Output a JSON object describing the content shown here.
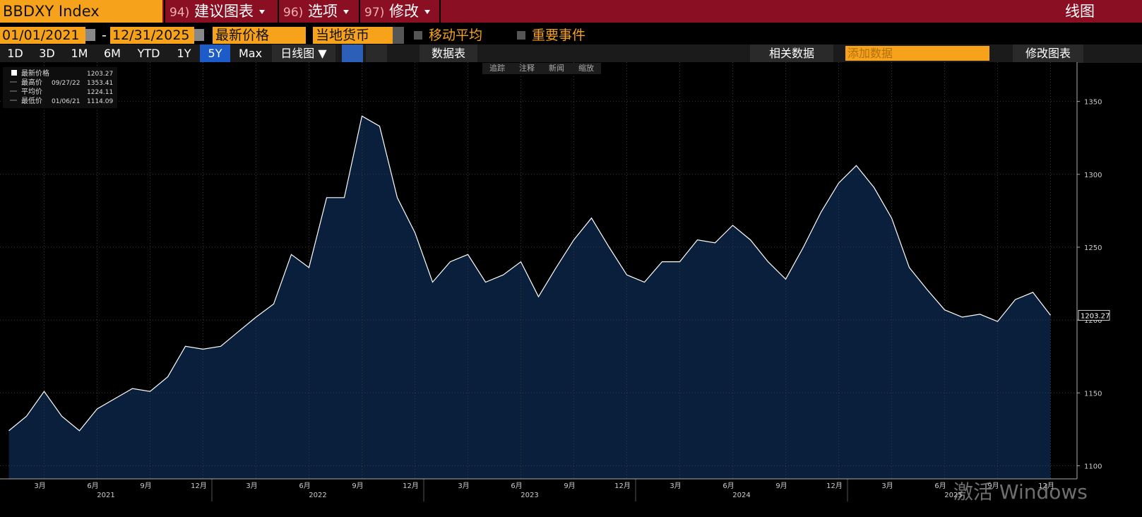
{
  "ui": {
    "ticker": "BBDXY Index",
    "menu": [
      {
        "num": "94)",
        "label": "建议图表"
      },
      {
        "num": "96)",
        "label": "选项"
      },
      {
        "num": "97)",
        "label": "修改"
      }
    ],
    "chart_kind": "线图",
    "start_date": "01/01/2021",
    "date_sep": "-",
    "end_date": "12/31/2025",
    "field": "最新价格",
    "currency": "当地货币",
    "moving_avg": "移动平均",
    "events": "重要事件",
    "periods": [
      "1D",
      "3D",
      "1M",
      "6M",
      "YTD",
      "1Y",
      "5Y",
      "Max"
    ],
    "active_period": "5Y",
    "frequency": "日线图 ▼",
    "table": "数据表",
    "related": "相关数据",
    "add_data": "添加数据",
    "edit_chart": "修改图表",
    "tools": [
      "追踪",
      "注释",
      "新闻",
      "缩放"
    ],
    "watermark": "激活 Windows"
  },
  "chart_data": {
    "type": "area",
    "color": "#ffffff",
    "fill": "#0a1f3c",
    "grid": true,
    "x": [
      "2021-01",
      "2021-02",
      "2021-03",
      "2021-04",
      "2021-05",
      "2021-06",
      "2021-07",
      "2021-08",
      "2021-09",
      "2021-10",
      "2021-11",
      "2021-12",
      "2022-01",
      "2022-02",
      "2022-03",
      "2022-04",
      "2022-05",
      "2022-06",
      "2022-07",
      "2022-08",
      "2022-09",
      "2022-10",
      "2022-11",
      "2022-12",
      "2023-01",
      "2023-02",
      "2023-03",
      "2023-04",
      "2023-05",
      "2023-06",
      "2023-07",
      "2023-08",
      "2023-09",
      "2023-10",
      "2023-11",
      "2023-12",
      "2024-01",
      "2024-02",
      "2024-03",
      "2024-04",
      "2024-05",
      "2024-06",
      "2024-07",
      "2024-08",
      "2024-09",
      "2024-10",
      "2024-11",
      "2024-12",
      "2025-01",
      "2025-02",
      "2025-03",
      "2025-04",
      "2025-05",
      "2025-06",
      "2025-07",
      "2025-08",
      "2025-09",
      "2025-10",
      "2025-11",
      "2025-12"
    ],
    "values": [
      1124,
      1134,
      1151,
      1134,
      1124,
      1139,
      1146,
      1153,
      1151,
      1161,
      1182,
      1180,
      1182,
      1192,
      1202,
      1211,
      1245,
      1236,
      1284,
      1284,
      1340,
      1333,
      1284,
      1260,
      1226,
      1240,
      1245,
      1226,
      1231,
      1240,
      1216,
      1236,
      1255,
      1270,
      1250,
      1231,
      1226,
      1240,
      1240,
      1255,
      1253,
      1265,
      1255,
      1240,
      1228,
      1250,
      1274,
      1294,
      1306,
      1291,
      1270,
      1236,
      1221,
      1207,
      1202,
      1204,
      1199,
      1214,
      1219,
      1203.27
    ],
    "ylim": [
      1091,
      1376
    ],
    "yticks": [
      1100,
      1150,
      1200,
      1250,
      1300,
      1350
    ],
    "xticks": [
      {
        "value": "2021-03",
        "label": "3月"
      },
      {
        "value": "2021-06",
        "label": "6月"
      },
      {
        "value": "2021-09",
        "label": "9月"
      },
      {
        "value": "2021-12",
        "label": "12月"
      },
      {
        "value": "2022-03",
        "label": "3月"
      },
      {
        "value": "2022-06",
        "label": "6月"
      },
      {
        "value": "2022-09",
        "label": "9月"
      },
      {
        "value": "2022-12",
        "label": "12月"
      },
      {
        "value": "2023-03",
        "label": "3月"
      },
      {
        "value": "2023-06",
        "label": "6月"
      },
      {
        "value": "2023-09",
        "label": "9月"
      },
      {
        "value": "2023-12",
        "label": "12月"
      },
      {
        "value": "2024-03",
        "label": "3月"
      },
      {
        "value": "2024-06",
        "label": "6月"
      },
      {
        "value": "2024-09",
        "label": "9月"
      },
      {
        "value": "2024-12",
        "label": "12月"
      },
      {
        "value": "2025-03",
        "label": "3月"
      },
      {
        "value": "2025-06",
        "label": "6月"
      },
      {
        "value": "2025-09",
        "label": "9月"
      },
      {
        "value": "2025-12",
        "label": "12月"
      }
    ],
    "years": [
      "2021",
      "2022",
      "2023",
      "2024",
      "2025"
    ],
    "stats": [
      {
        "name": "最新价格",
        "date": null,
        "value": 1203.27
      },
      {
        "name": "最高价",
        "date": "09/27/22",
        "value": 1353.41
      },
      {
        "name": "平均价",
        "date": null,
        "value": 1224.11
      },
      {
        "name": "最低价",
        "date": "01/06/21",
        "value": 1114.09
      }
    ]
  }
}
